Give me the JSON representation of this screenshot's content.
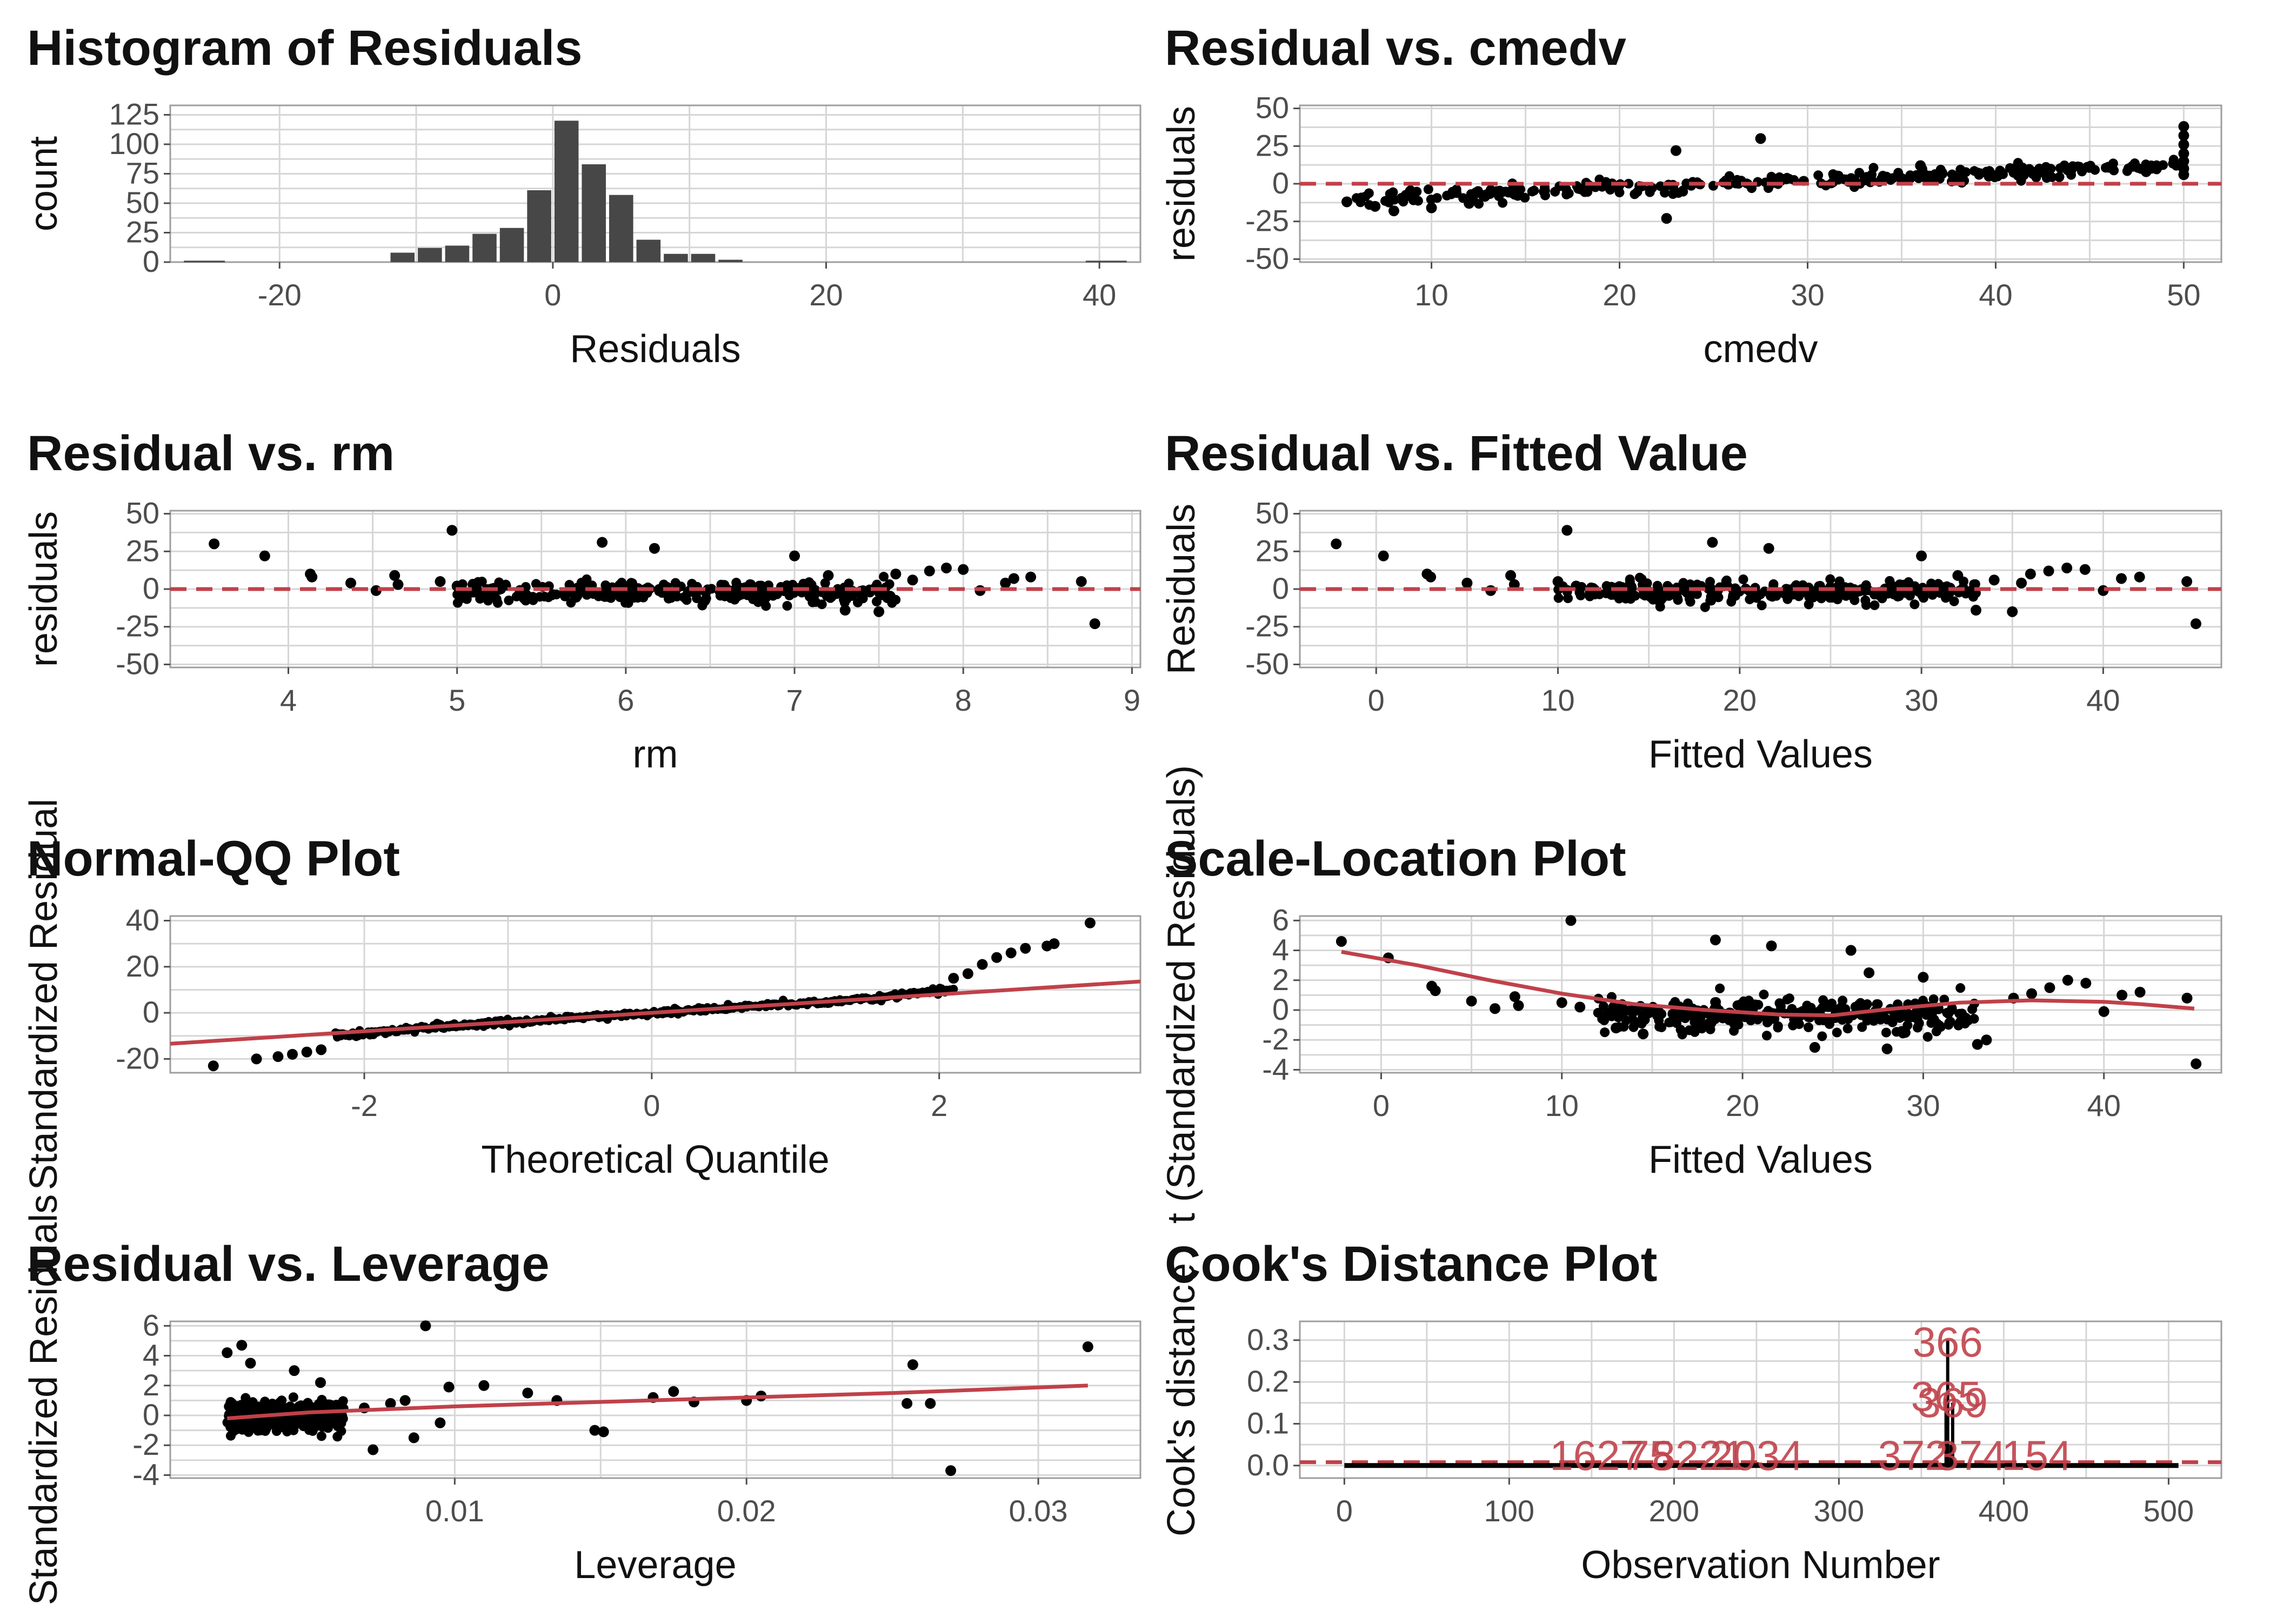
{
  "chart_data": [
    {
      "id": "hist",
      "type": "bar",
      "title": "Histogram of Residuals",
      "xlabel": "Residuals",
      "ylabel": "count",
      "xlim": [
        -28,
        43
      ],
      "ylim": [
        0,
        133
      ],
      "xticks": [
        -20,
        0,
        20,
        40
      ],
      "yticks": [
        0,
        25,
        50,
        75,
        100,
        125
      ],
      "ytick_labels": [
        "0",
        "25",
        "50",
        "75",
        "100",
        "125"
      ],
      "bin_width": 2.0,
      "bins": [
        [
          -12,
          8
        ],
        [
          -10,
          12
        ],
        [
          -8,
          14
        ],
        [
          -6,
          24
        ],
        [
          -4,
          29
        ],
        [
          -2,
          61
        ],
        [
          0,
          120
        ],
        [
          2,
          83
        ],
        [
          4,
          57
        ],
        [
          6,
          19
        ],
        [
          8,
          7
        ],
        [
          10,
          7
        ],
        [
          12,
          2
        ]
      ],
      "bar_color": "#474747"
    },
    {
      "id": "cmedv",
      "type": "scatter",
      "title": "Residual vs. cmedv",
      "xlabel": "cmedv",
      "ylabel": "residuals",
      "xlim": [
        3,
        52
      ],
      "ylim": [
        -52,
        52
      ],
      "xticks": [
        10,
        20,
        30,
        40,
        50
      ],
      "yticks": [
        -50,
        -25,
        0,
        25,
        50
      ],
      "refline": 0,
      "band": {
        "x_from": 6,
        "x_to": 50,
        "slope": 0.5,
        "intercept": -10,
        "spread": 5
      },
      "points": [
        [
          27.5,
          30
        ],
        [
          23,
          22
        ],
        [
          50,
          38
        ],
        [
          50,
          32
        ],
        [
          50,
          26
        ],
        [
          50,
          20
        ],
        [
          50,
          15
        ],
        [
          50,
          10
        ],
        [
          50,
          6
        ],
        [
          22.5,
          -23
        ],
        [
          5.5,
          -12
        ],
        [
          7,
          -15
        ],
        [
          8,
          -18
        ],
        [
          10,
          -16
        ],
        [
          12,
          -13
        ],
        [
          36,
          12
        ],
        [
          41,
          10
        ],
        [
          44,
          9
        ],
        [
          46,
          11
        ],
        [
          48,
          8
        ]
      ]
    },
    {
      "id": "rm",
      "type": "scatter",
      "title": "Residual vs. rm",
      "xlabel": "rm",
      "ylabel": "residuals",
      "xlim": [
        3.3,
        9.05
      ],
      "ylim": [
        -52,
        52
      ],
      "xticks": [
        4,
        5,
        6,
        7,
        8,
        9
      ],
      "yticks": [
        -50,
        -25,
        0,
        25,
        50
      ],
      "refline": 0,
      "band": {
        "x_from": 5.0,
        "x_to": 7.6,
        "slope": 0,
        "intercept": -2,
        "spread": 8
      },
      "points": [
        [
          3.56,
          30
        ],
        [
          3.86,
          22
        ],
        [
          4.13,
          10
        ],
        [
          4.14,
          8
        ],
        [
          4.37,
          4
        ],
        [
          4.52,
          -1
        ],
        [
          4.63,
          9
        ],
        [
          4.65,
          3
        ],
        [
          4.97,
          39
        ],
        [
          5.86,
          31
        ],
        [
          6.17,
          27
        ],
        [
          4.9,
          5
        ],
        [
          5.0,
          2
        ],
        [
          7.0,
          22
        ],
        [
          7.3,
          -14
        ],
        [
          7.5,
          -15
        ],
        [
          7.6,
          10
        ],
        [
          7.8,
          12
        ],
        [
          7.9,
          14
        ],
        [
          8.0,
          13
        ],
        [
          8.1,
          -1
        ],
        [
          8.3,
          7
        ],
        [
          8.4,
          8
        ],
        [
          8.7,
          5
        ],
        [
          8.78,
          -23
        ],
        [
          8.25,
          4
        ],
        [
          7.7,
          6
        ],
        [
          7.2,
          9
        ]
      ]
    },
    {
      "id": "fitted",
      "type": "scatter",
      "title": "Residual vs. Fitted Value",
      "xlabel": "Fitted Values",
      "ylabel": "Residuals",
      "xlim": [
        -4.2,
        46.5
      ],
      "ylim": [
        -52,
        52
      ],
      "xticks": [
        0,
        10,
        20,
        30,
        40
      ],
      "yticks": [
        -50,
        -25,
        0,
        25,
        50
      ],
      "refline": 0,
      "band": {
        "x_from": 10,
        "x_to": 33,
        "slope": 0,
        "intercept": -2,
        "spread": 8
      },
      "points": [
        [
          -2.2,
          30
        ],
        [
          0.4,
          22
        ],
        [
          2.8,
          10
        ],
        [
          3,
          8
        ],
        [
          5,
          4
        ],
        [
          6.3,
          -1
        ],
        [
          7.4,
          9
        ],
        [
          7.6,
          3
        ],
        [
          10.5,
          39
        ],
        [
          18.5,
          31
        ],
        [
          21.6,
          27
        ],
        [
          10,
          5
        ],
        [
          11,
          2
        ],
        [
          30,
          22
        ],
        [
          33,
          -14
        ],
        [
          35,
          -15
        ],
        [
          36,
          10
        ],
        [
          37,
          12
        ],
        [
          38,
          14
        ],
        [
          39,
          13
        ],
        [
          40,
          -1
        ],
        [
          41,
          7
        ],
        [
          42,
          8
        ],
        [
          44.6,
          5
        ],
        [
          45.1,
          -23
        ],
        [
          35.5,
          4
        ],
        [
          34,
          6
        ],
        [
          32,
          9
        ]
      ]
    },
    {
      "id": "qq",
      "type": "line",
      "title": "Normal-QQ Plot",
      "xlabel": "Theoretical Quantile",
      "ylabel": "Standardized Residual",
      "xlim": [
        -3.35,
        3.4
      ],
      "ylim": [
        -26,
        42
      ],
      "xticks": [
        -2,
        0,
        2
      ],
      "yticks": [
        -20,
        0,
        20,
        40
      ],
      "qq_line": {
        "slope": 4,
        "intercept": 0
      },
      "tail_points": [
        [
          -3.05,
          -23
        ],
        [
          -2.75,
          -20
        ],
        [
          -2.6,
          -19
        ],
        [
          -2.5,
          -18
        ],
        [
          -2.4,
          -17
        ],
        [
          -2.3,
          -16
        ],
        [
          2.1,
          15
        ],
        [
          2.2,
          17
        ],
        [
          2.3,
          21
        ],
        [
          2.4,
          24
        ],
        [
          2.5,
          26
        ],
        [
          2.6,
          28
        ],
        [
          2.75,
          29
        ],
        [
          2.8,
          30
        ],
        [
          3.05,
          39
        ]
      ]
    },
    {
      "id": "scale",
      "type": "scatter",
      "title": "Scale-Location Plot",
      "xlabel": "Fitted Values",
      "ylabel": "t (Standardized Residuals)",
      "xlim": [
        -4.5,
        46.5
      ],
      "ylim": [
        -4.2,
        6.3
      ],
      "xticks": [
        0,
        10,
        20,
        30,
        40
      ],
      "yticks": [
        -4,
        -2,
        0,
        2,
        4,
        6
      ],
      "band": {
        "x_from": 12,
        "x_to": 33,
        "slope": 0,
        "intercept": -0.3,
        "spread": 1.2
      },
      "smooth": [
        [
          -2.2,
          3.9
        ],
        [
          2,
          3.0
        ],
        [
          6,
          2.0
        ],
        [
          10,
          1.1
        ],
        [
          14,
          0.4
        ],
        [
          18,
          0.0
        ],
        [
          22,
          -0.3
        ],
        [
          25,
          -0.35
        ],
        [
          28,
          0.05
        ],
        [
          32,
          0.5
        ],
        [
          36,
          0.65
        ],
        [
          40,
          0.55
        ],
        [
          42,
          0.4
        ],
        [
          45,
          0.1
        ]
      ],
      "points": [
        [
          -2.2,
          4.6
        ],
        [
          0.4,
          3.5
        ],
        [
          2.8,
          1.6
        ],
        [
          3,
          1.3
        ],
        [
          5,
          0.6
        ],
        [
          6.3,
          0.1
        ],
        [
          7.4,
          0.9
        ],
        [
          7.6,
          0.3
        ],
        [
          10.5,
          6.0
        ],
        [
          18.5,
          4.7
        ],
        [
          21.6,
          4.3
        ],
        [
          10,
          0.5
        ],
        [
          11,
          0.2
        ],
        [
          30,
          2.2
        ],
        [
          33,
          -2.3
        ],
        [
          35,
          0.8
        ],
        [
          36,
          1.1
        ],
        [
          37,
          1.5
        ],
        [
          38,
          2.0
        ],
        [
          39,
          1.8
        ],
        [
          40,
          -0.1
        ],
        [
          41,
          1.0
        ],
        [
          42,
          1.2
        ],
        [
          44.6,
          0.8
        ],
        [
          45.1,
          -3.6
        ],
        [
          33.5,
          -2.0
        ],
        [
          27,
          2.5
        ],
        [
          28,
          -2.6
        ],
        [
          29,
          -1.5
        ],
        [
          26,
          4.0
        ],
        [
          24,
          -2.5
        ],
        [
          13,
          -1.2
        ],
        [
          14.5,
          -1.6
        ]
      ]
    },
    {
      "id": "leverage",
      "type": "scatter",
      "title": "Residual vs. Leverage",
      "xlabel": "Leverage",
      "ylabel": "Standardized Residuals",
      "xlim": [
        0.00025,
        0.0335
      ],
      "ylim": [
        -4.2,
        6.3
      ],
      "xticks": [
        0.01,
        0.02,
        0.03
      ],
      "xtick_labels": [
        "0.01",
        "0.02",
        "0.03"
      ],
      "yticks": [
        -4,
        -2,
        0,
        2,
        4,
        6
      ],
      "band": {
        "x_from": 0.0022,
        "x_to": 0.0062,
        "slope": 0,
        "intercept": 0,
        "spread": 1.2
      },
      "smooth": [
        [
          0.0022,
          -0.2
        ],
        [
          0.005,
          0.2
        ],
        [
          0.01,
          0.6
        ],
        [
          0.015,
          0.9
        ],
        [
          0.02,
          1.2
        ],
        [
          0.025,
          1.5
        ],
        [
          0.0317,
          2.0
        ]
      ],
      "points": [
        [
          0.0022,
          4.2
        ],
        [
          0.0027,
          4.7
        ],
        [
          0.003,
          3.5
        ],
        [
          0.0045,
          3.0
        ],
        [
          0.0054,
          2.2
        ],
        [
          0.009,
          6.0
        ],
        [
          0.0257,
          3.4
        ],
        [
          0.0317,
          4.6
        ],
        [
          0.027,
          -3.7
        ],
        [
          0.0255,
          0.8
        ],
        [
          0.0263,
          0.8
        ],
        [
          0.0072,
          -2.3
        ],
        [
          0.0086,
          -1.5
        ],
        [
          0.0095,
          -0.5
        ],
        [
          0.0078,
          0.8
        ],
        [
          0.011,
          2.0
        ],
        [
          0.0125,
          1.5
        ],
        [
          0.0135,
          1.0
        ],
        [
          0.0148,
          -1.0
        ],
        [
          0.0151,
          -1.1
        ],
        [
          0.0168,
          1.2
        ],
        [
          0.0175,
          1.6
        ],
        [
          0.0182,
          0.9
        ],
        [
          0.02,
          1.0
        ],
        [
          0.0205,
          1.3
        ],
        [
          0.0083,
          1.0
        ],
        [
          0.0069,
          0.5
        ],
        [
          0.0098,
          1.9
        ]
      ]
    },
    {
      "id": "cooks",
      "type": "bar",
      "title": "Cook's Distance Plot",
      "xlabel": "Observation Number",
      "ylabel": "Cook's distance",
      "xlim": [
        -27,
        532
      ],
      "ylim": [
        -0.03,
        0.345
      ],
      "xticks": [
        0,
        100,
        200,
        300,
        400,
        500
      ],
      "yticks": [
        0.0,
        0.1,
        0.2,
        0.3
      ],
      "ytick_labels": [
        "0.0",
        "0.1",
        "0.2",
        "0.3"
      ],
      "threshold": 0.008,
      "n_obs": 506,
      "spikes": [
        [
          366,
          0.3
        ],
        [
          365,
          0.16
        ],
        [
          369,
          0.15
        ],
        [
          368,
          0.05
        ]
      ],
      "labels": [
        {
          "x": 366,
          "y": 0.3,
          "text": "366"
        },
        {
          "x": 365,
          "y": 0.17,
          "text": "365"
        },
        {
          "x": 369,
          "y": 0.155,
          "text": "369"
        },
        {
          "x": 153,
          "y": 0.0,
          "text": "1627"
        },
        {
          "x": 185,
          "y": 0.0,
          "text": "75"
        },
        {
          "x": 215,
          "y": 0.0,
          "text": "8221"
        },
        {
          "x": 250,
          "y": 0.0,
          "text": "2034"
        },
        {
          "x": 345,
          "y": 0.0,
          "text": "372"
        },
        {
          "x": 380,
          "y": 0.0,
          "text": "374"
        },
        {
          "x": 420,
          "y": 0.0,
          "text": "154"
        }
      ]
    }
  ]
}
